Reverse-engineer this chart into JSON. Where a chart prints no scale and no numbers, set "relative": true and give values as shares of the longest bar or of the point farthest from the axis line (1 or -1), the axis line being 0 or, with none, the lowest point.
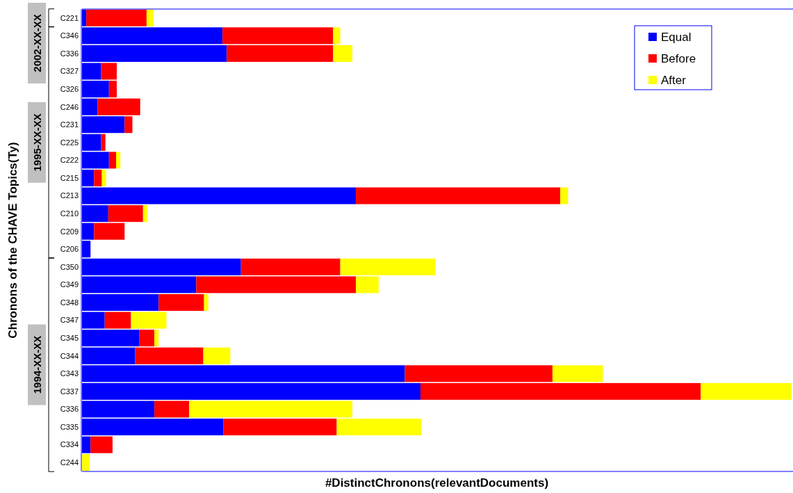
{
  "chart_data": {
    "type": "bar",
    "orientation": "horizontal",
    "stacked": true,
    "relative": true,
    "legend": "top right",
    "ylabel": "Chronons of the CHAVE Topics(Ty)",
    "xlabel": "#DistinctChronons(relevantDocuments)",
    "annotations": [
      "2002-XX-XX",
      "1995-XX-XX",
      "1994-XX-XX"
    ],
    "categories": [
      "C221",
      "C346",
      "C336",
      "C327",
      "C326",
      "C246",
      "C231",
      "C225",
      "C222",
      "C215",
      "C213",
      "C210",
      "C209",
      "C206",
      "C350",
      "C349",
      "C348",
      "C347",
      "C345",
      "C344",
      "C343",
      "C337",
      "C336",
      "C335",
      "C334",
      "C244"
    ],
    "series": [
      {
        "name": "Equal",
        "color": "#0000ff",
        "values": [
          0.006,
          0.198,
          0.204,
          0.027,
          0.038,
          0.022,
          0.06,
          0.027,
          0.038,
          0.017,
          0.386,
          0.037,
          0.017,
          0.012,
          0.224,
          0.161,
          0.108,
          0.032,
          0.081,
          0.075,
          0.455,
          0.477,
          0.102,
          0.199,
          0.012,
          0
        ]
      },
      {
        "name": "Before",
        "color": "#ff0000",
        "values": [
          0.085,
          0.156,
          0.15,
          0.022,
          0.011,
          0.06,
          0.011,
          0.006,
          0.01,
          0.011,
          0.288,
          0.049,
          0.043,
          0,
          0.14,
          0.225,
          0.064,
          0.037,
          0.021,
          0.096,
          0.208,
          0.395,
          0.049,
          0.16,
          0.031,
          0
        ]
      },
      {
        "name": "After",
        "color": "#ffff00",
        "values": [
          0.01,
          0.01,
          0.027,
          0,
          0,
          0,
          0,
          0,
          0.006,
          0.006,
          0.011,
          0.006,
          0,
          0,
          0.134,
          0.032,
          0.006,
          0.05,
          0.006,
          0.038,
          0.071,
          0.128,
          0.23,
          0.119,
          0,
          0.011
        ]
      }
    ]
  }
}
